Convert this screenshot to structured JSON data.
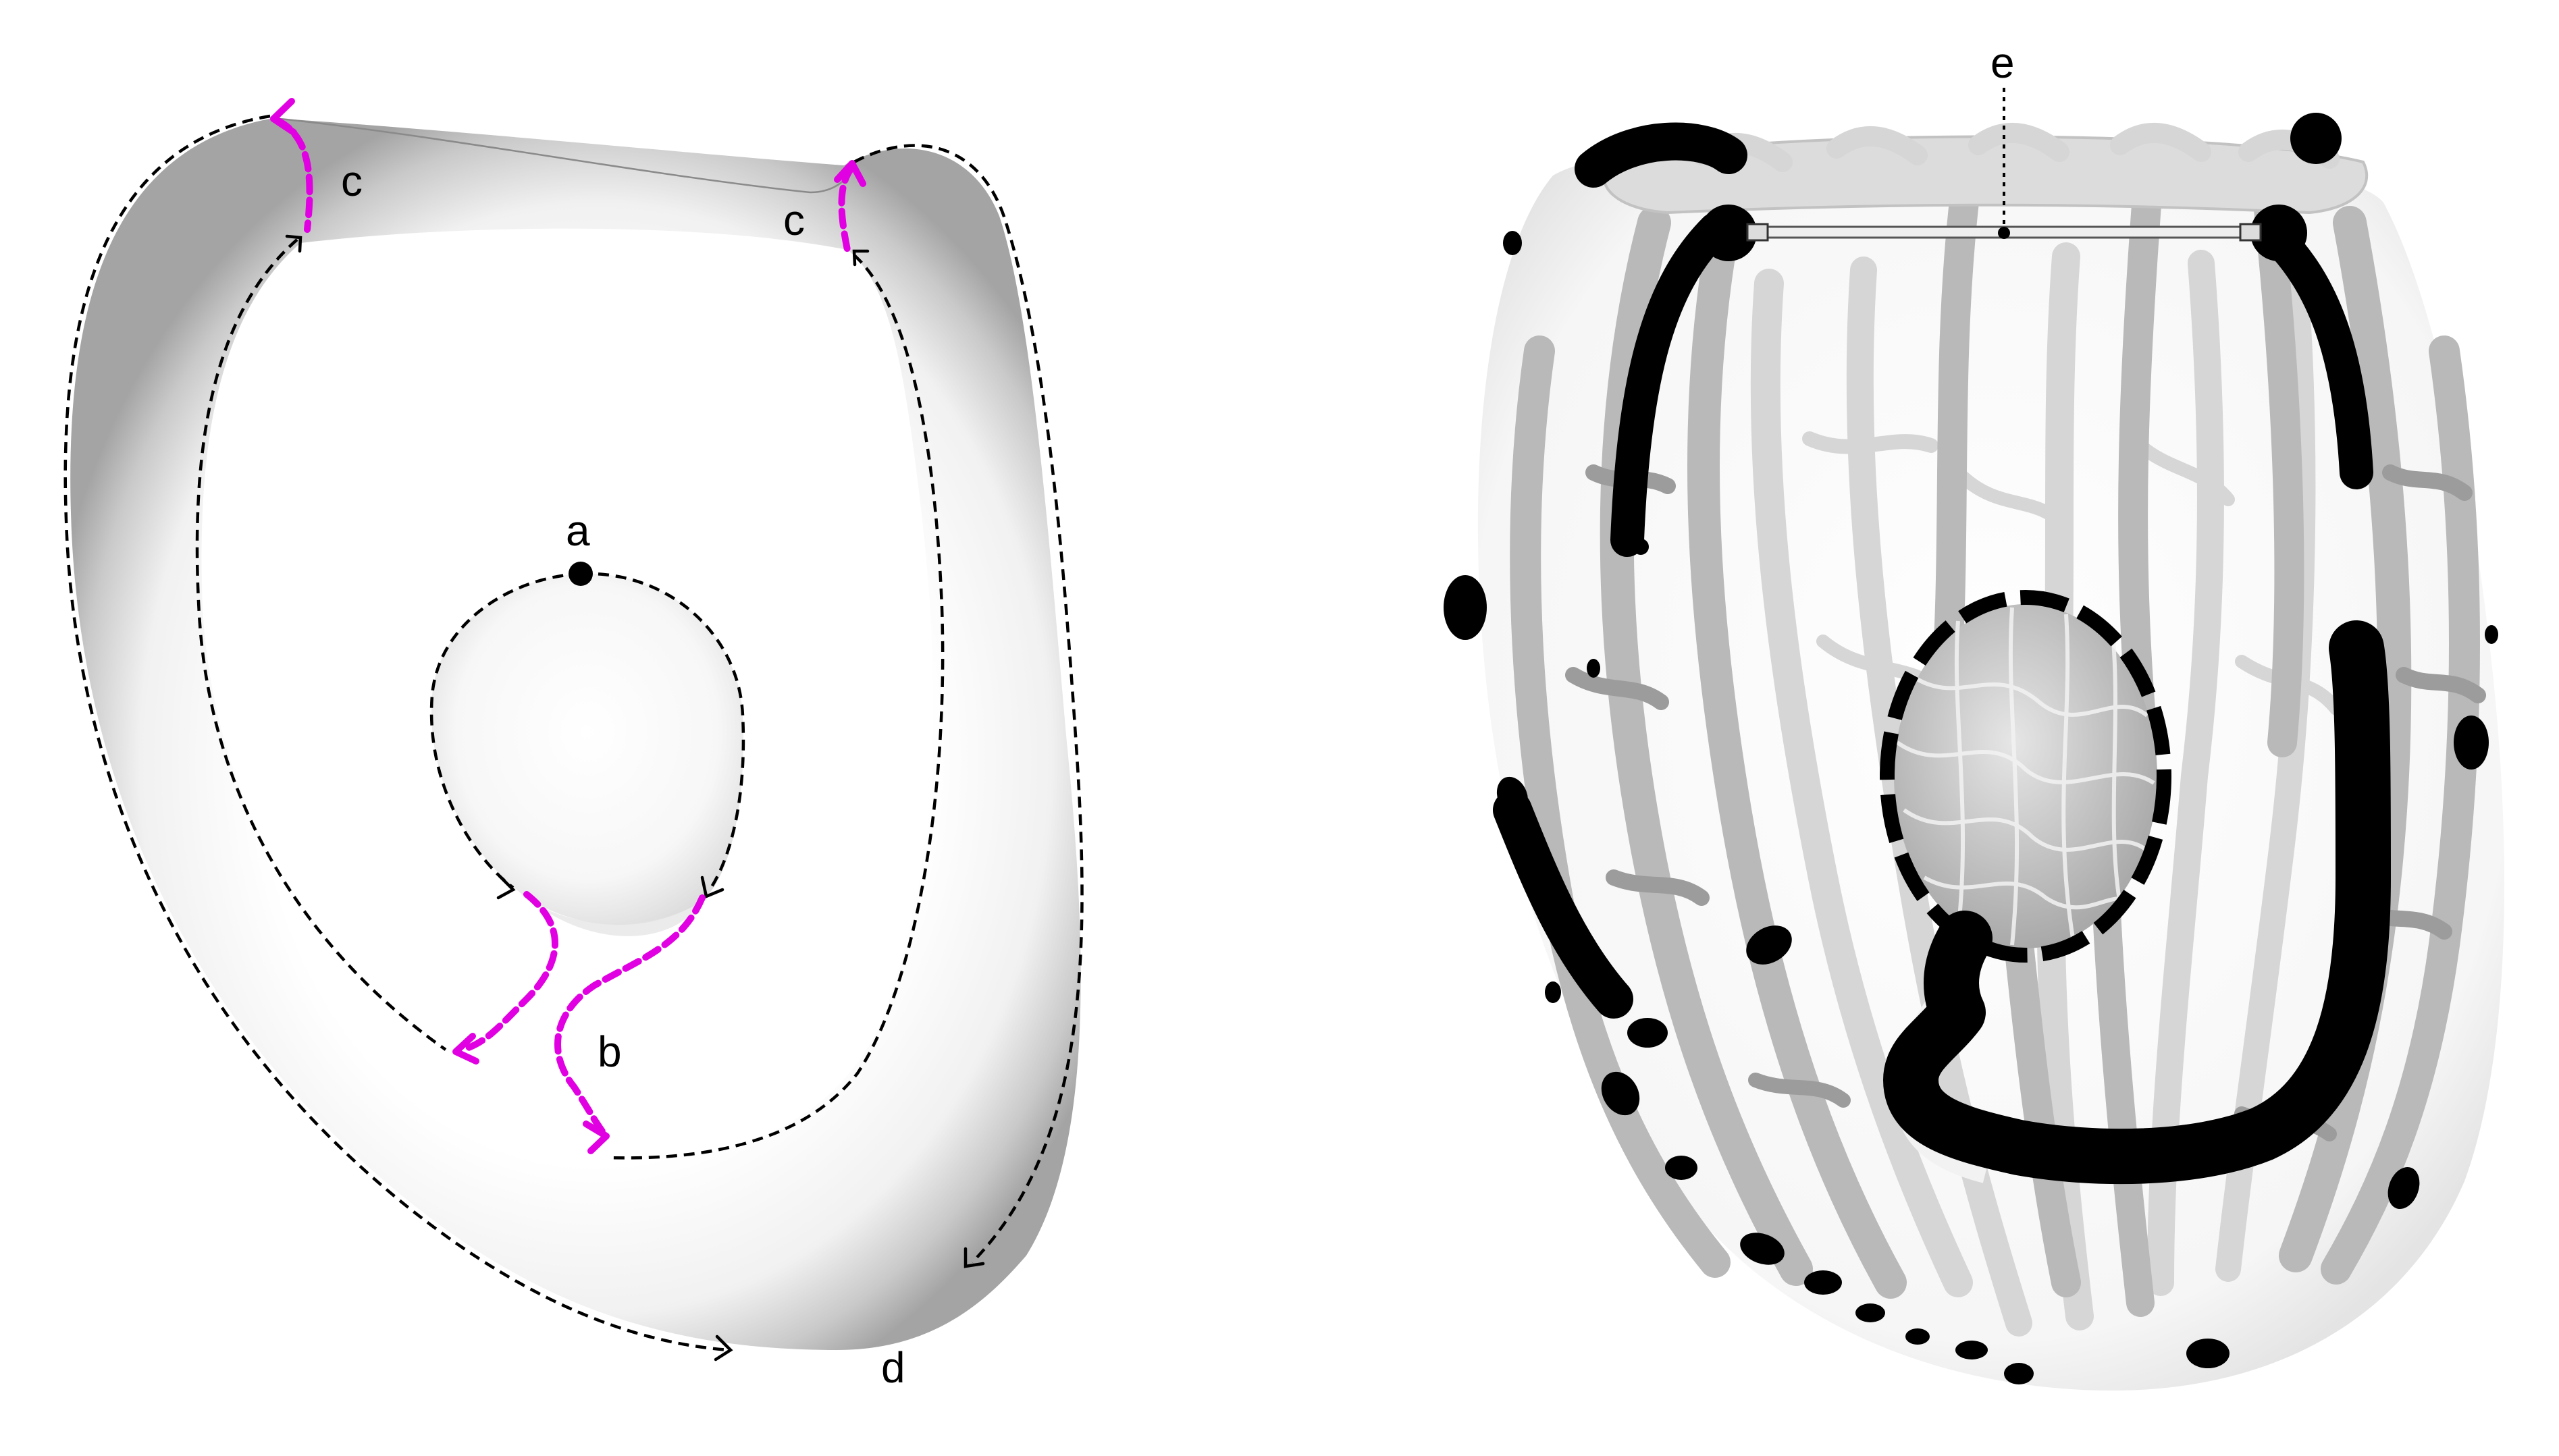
{
  "labels": {
    "a": "a",
    "b": "b",
    "c_left": "c",
    "c_right": "c",
    "d": "d",
    "e": "e"
  },
  "colors": {
    "path_dashed": "#000000",
    "seam_path": "#e100e1",
    "surface_shade": "#9a9a9a",
    "vessel": "#b9b9b9",
    "marker": "#000000"
  }
}
